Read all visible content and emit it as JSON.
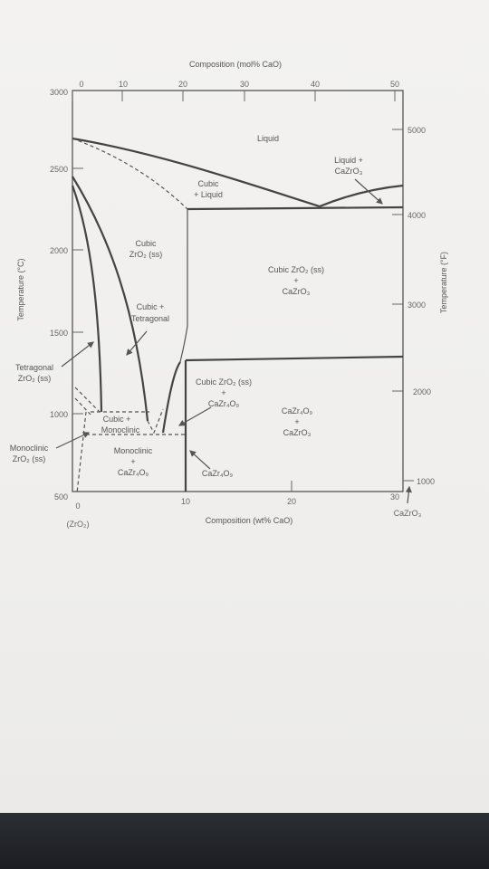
{
  "axes": {
    "top_title": "Composition (mol% CaO)",
    "bottom_title": "Composition (wt% CaO)",
    "left_title": "Temperature (°C)",
    "right_title": "Temperature (°F)",
    "top_ticks": [
      "0",
      "10",
      "20",
      "30",
      "40",
      "50"
    ],
    "bottom_ticks": [
      "0",
      "10",
      "20",
      "30"
    ],
    "left_ticks": [
      "3000",
      "2500",
      "2000",
      "1500",
      "1000",
      "500"
    ],
    "right_ticks": [
      "5000",
      "4000",
      "3000",
      "2000",
      "1000"
    ],
    "bottom_left_label": "(ZrO₂)",
    "bottom_right_label": "CaZrO₃"
  },
  "regions": {
    "liquid": "Liquid",
    "liquid_cazro3_1": "Liquid +",
    "liquid_cazro3_2": "CaZrO₃",
    "cubic_liquid_1": "Cubic",
    "cubic_liquid_2": "+ Liquid",
    "cubic_zro2_1": "Cubic",
    "cubic_zro2_2": "ZrO₂ (ss)",
    "cubic_cazro3_1": "Cubic ZrO₂ (ss)",
    "cubic_cazro3_2": "+",
    "cubic_cazro3_3": "CaZrO₃",
    "cubic_tetragonal_1": "Cubic +",
    "cubic_tetragonal_2": "Tetragonal",
    "tetragonal_1": "Tetragonal",
    "tetragonal_2": "ZrO₂ (ss)",
    "cubic_ca_1": "Cubic ZrO₂ (ss)",
    "cubic_ca_2": "+",
    "cubic_ca_3": "CaZr₄O₉",
    "ca_cazro3_1": "CaZr₄O₉",
    "ca_cazro3_2": "+",
    "ca_cazro3_3": "CaZrO₃",
    "cubic_mono_1": "Cubic +",
    "cubic_mono_2": "Monoclinic",
    "monoclinic_1": "Monoclinic",
    "monoclinic_2": "ZrO₂ (ss)",
    "mono_ca_1": "Monoclinic",
    "mono_ca_2": "+",
    "mono_ca_3": "CaZr₄O₉",
    "ca_single": "CaZr₄O₉"
  }
}
